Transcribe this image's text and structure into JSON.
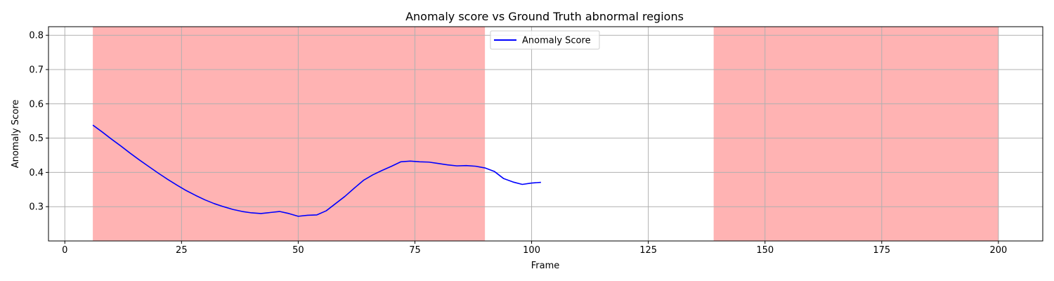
{
  "chart_data": {
    "type": "line",
    "title": "Anomaly score vs Ground Truth abnormal regions",
    "xlabel": "Frame",
    "ylabel": "Anomaly Score",
    "xlim": [
      -3.5,
      209.5
    ],
    "ylim": [
      0.2,
      0.825
    ],
    "xticks": [
      0,
      25,
      50,
      75,
      100,
      125,
      150,
      175,
      200
    ],
    "yticks": [
      0.3,
      0.4,
      0.5,
      0.6,
      0.7,
      0.8
    ],
    "xtick_labels": [
      "0",
      "25",
      "50",
      "75",
      "100",
      "125",
      "150",
      "175",
      "200"
    ],
    "ytick_labels": [
      "0.3",
      "0.4",
      "0.5",
      "0.6",
      "0.7",
      "0.8"
    ],
    "grid": true,
    "legend_position": "top-center",
    "abnormal_regions": [
      [
        6,
        90
      ],
      [
        139,
        200
      ]
    ],
    "region_color": "#ff9999",
    "series": [
      {
        "name": "Anomaly Score",
        "color": "#0000ff",
        "points": [
          [
            6,
            0.538
          ],
          [
            8,
            0.518
          ],
          [
            10,
            0.497
          ],
          [
            12,
            0.477
          ],
          [
            14,
            0.456
          ],
          [
            16,
            0.436
          ],
          [
            18,
            0.417
          ],
          [
            20,
            0.398
          ],
          [
            22,
            0.38
          ],
          [
            24,
            0.363
          ],
          [
            26,
            0.347
          ],
          [
            28,
            0.333
          ],
          [
            30,
            0.32
          ],
          [
            32,
            0.309
          ],
          [
            34,
            0.3
          ],
          [
            36,
            0.292
          ],
          [
            38,
            0.286
          ],
          [
            40,
            0.282
          ],
          [
            42,
            0.28
          ],
          [
            44,
            0.283
          ],
          [
            46,
            0.286
          ],
          [
            48,
            0.28
          ],
          [
            50,
            0.272
          ],
          [
            52,
            0.275
          ],
          [
            54,
            0.276
          ],
          [
            56,
            0.288
          ],
          [
            58,
            0.309
          ],
          [
            60,
            0.33
          ],
          [
            62,
            0.354
          ],
          [
            64,
            0.377
          ],
          [
            66,
            0.393
          ],
          [
            68,
            0.406
          ],
          [
            70,
            0.418
          ],
          [
            72,
            0.431
          ],
          [
            74,
            0.433
          ],
          [
            76,
            0.431
          ],
          [
            78,
            0.43
          ],
          [
            80,
            0.426
          ],
          [
            82,
            0.422
          ],
          [
            84,
            0.419
          ],
          [
            86,
            0.42
          ],
          [
            88,
            0.418
          ],
          [
            90,
            0.413
          ],
          [
            92,
            0.403
          ],
          [
            94,
            0.382
          ],
          [
            96,
            0.372
          ],
          [
            98,
            0.365
          ],
          [
            100,
            0.369
          ],
          [
            102,
            0.371
          ]
        ]
      }
    ]
  },
  "legend": {
    "label": "Anomaly Score"
  }
}
